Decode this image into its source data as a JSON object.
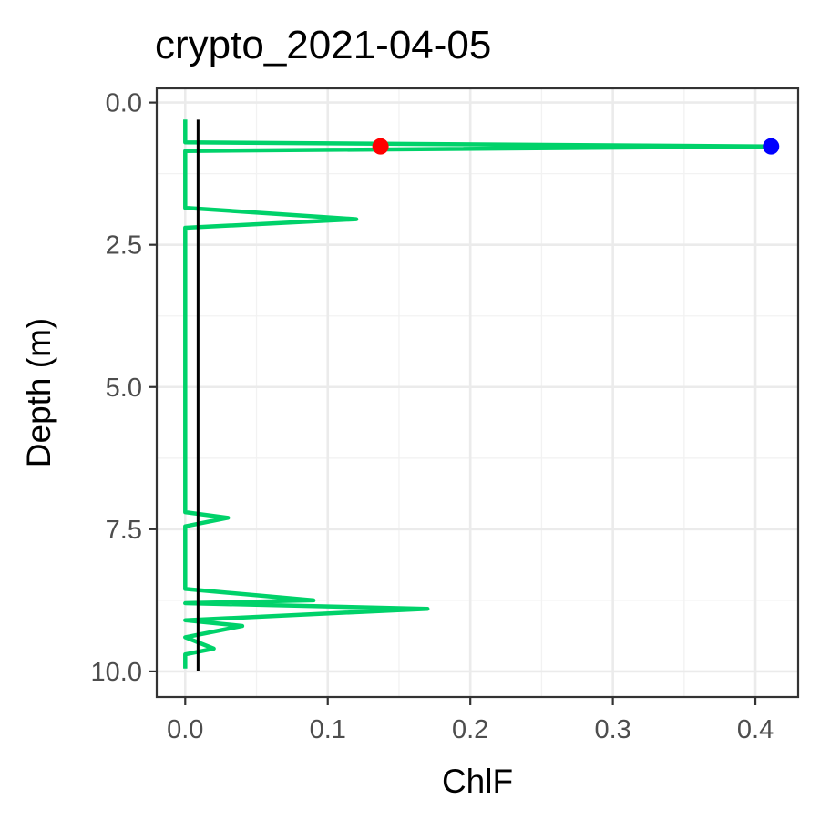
{
  "chart_data": {
    "type": "line",
    "title": "crypto_2021-04-05",
    "xlabel": "ChlF",
    "ylabel": "Depth (m)",
    "xlim": [
      -0.02,
      0.43
    ],
    "ylim": [
      10.45,
      -0.25
    ],
    "y_reversed": true,
    "grid": true,
    "x_ticks": [
      0.0,
      0.1,
      0.2,
      0.3,
      0.4
    ],
    "x_tick_labels": [
      "0.0",
      "0.1",
      "0.2",
      "0.3",
      "0.4"
    ],
    "y_ticks": [
      0.0,
      2.5,
      5.0,
      7.5,
      10.0
    ],
    "y_tick_labels": [
      "0.0",
      "2.5",
      "5.0",
      "7.5",
      "10.0"
    ],
    "series": [
      {
        "color": "#00d26a",
        "x": [
          0.0,
          0.0,
          0.0,
          0.41,
          0.0,
          0.0,
          0.0,
          0.12,
          0.0,
          0.0,
          0.0,
          0.03,
          0.0,
          0.0,
          0.0,
          0.09,
          0.0,
          0.17,
          0.0,
          0.04,
          0.0,
          0.02,
          0.0,
          0.0
        ],
        "y": [
          0.3,
          0.5,
          0.7,
          0.77,
          0.85,
          1.0,
          1.85,
          2.05,
          2.2,
          5.0,
          7.2,
          7.3,
          7.45,
          8.0,
          8.55,
          8.75,
          8.8,
          8.9,
          9.1,
          9.2,
          9.4,
          9.6,
          9.7,
          9.95
        ]
      }
    ],
    "vline": {
      "x": 0.009,
      "y_from": 0.3,
      "y_to": 10.0,
      "color": "#000000"
    },
    "points": [
      {
        "x": 0.137,
        "y": 0.77,
        "color": "#ff0000"
      },
      {
        "x": 0.411,
        "y": 0.77,
        "color": "#0000ff"
      }
    ]
  }
}
